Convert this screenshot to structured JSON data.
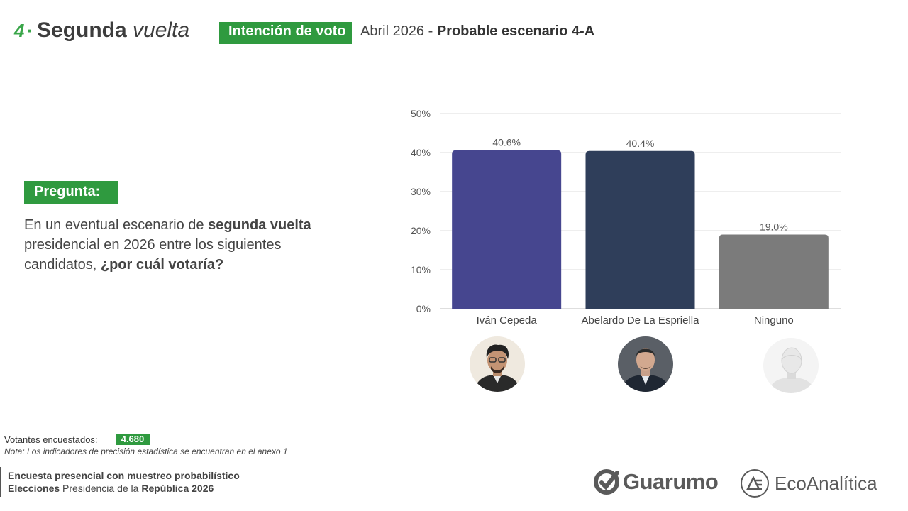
{
  "header": {
    "number": "4",
    "dot": "·",
    "title_bold": "Segunda ",
    "title_italic": "vuelta",
    "badge": "Intención de voto",
    "subtitle_prefix": "Abril  2026 - ",
    "subtitle_bold": "Probable escenario 4-A"
  },
  "question": {
    "label": "Pregunta:",
    "text_1": "En un eventual escenario de ",
    "text_bold_1": "segunda vuelta",
    "text_2": " presidencial en 2026 entre los siguientes candidatos, ",
    "text_bold_2": "¿por cuál votaría?"
  },
  "footer": {
    "votantes_label": "Votantes encuestados:",
    "votantes_value": "4.680",
    "nota": "Nota: Los indicadores de precisión estadística se encuentran en el anexo 1",
    "line1": "Encuesta presencial con muestreo probabilístico",
    "line2_bold_1": "Elecciones",
    "line2_normal": " Presidencia de la ",
    "line2_bold_2": "República 2026"
  },
  "logos": {
    "guarumo": "Guarumo",
    "eco": "EcoAnalítica"
  },
  "colors": {
    "accent": "#2f9a3f",
    "bar_1": "#46468f",
    "bar_2": "#2f3e5a",
    "bar_3": "#7b7b7b"
  },
  "chart_data": {
    "type": "bar",
    "categories": [
      "Iván Cepeda",
      "Abelardo De La Espriella",
      "Ninguno"
    ],
    "values": [
      40.6,
      40.4,
      19.0
    ],
    "data_labels": [
      "40.6%",
      "40.4%",
      "19.0%"
    ],
    "ylim": [
      0,
      50
    ],
    "yticks": [
      0,
      10,
      20,
      30,
      40,
      50
    ],
    "ytick_labels": [
      "0%",
      "10%",
      "20%",
      "30%",
      "40%",
      "50%"
    ],
    "grid": true,
    "title": "",
    "xlabel": "",
    "ylabel": ""
  }
}
